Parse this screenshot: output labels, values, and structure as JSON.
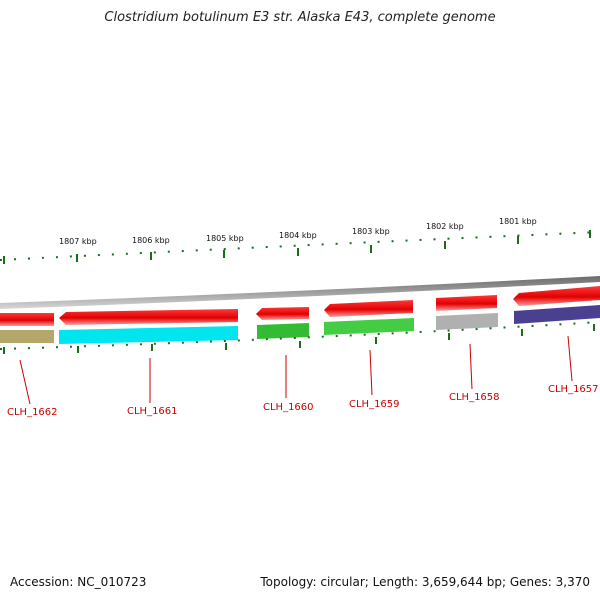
{
  "title": "Clostridium botulinum E3 str. Alaska E43, complete genome",
  "footer": {
    "accession": "Accession: NC_010723",
    "summary": "Topology: circular; Length: 3,659,644 bp; Genes: 3,370"
  },
  "kbp_labels": [
    "1807 kbp",
    "1806 kbp",
    "1805 kbp",
    "1804 kbp",
    "1803 kbp",
    "1802 kbp",
    "1801 kbp"
  ],
  "genes": [
    {
      "label": "CLH_1662",
      "color": "#b3a86a"
    },
    {
      "label": "CLH_1661",
      "color": "#00e5ee"
    },
    {
      "label": "CLH_1660",
      "color": "#33bb33"
    },
    {
      "label": "CLH_1659",
      "color": "#44cc44"
    },
    {
      "label": "CLH_1658",
      "color": "#b0b0b0"
    },
    {
      "label": "CLH_1657",
      "color": "#4a3f90"
    }
  ],
  "colors": {
    "forward_cds": "#e00000",
    "backbone": "#8a8a8a",
    "tick": "#1a6e1a",
    "label": "#cc0000"
  }
}
